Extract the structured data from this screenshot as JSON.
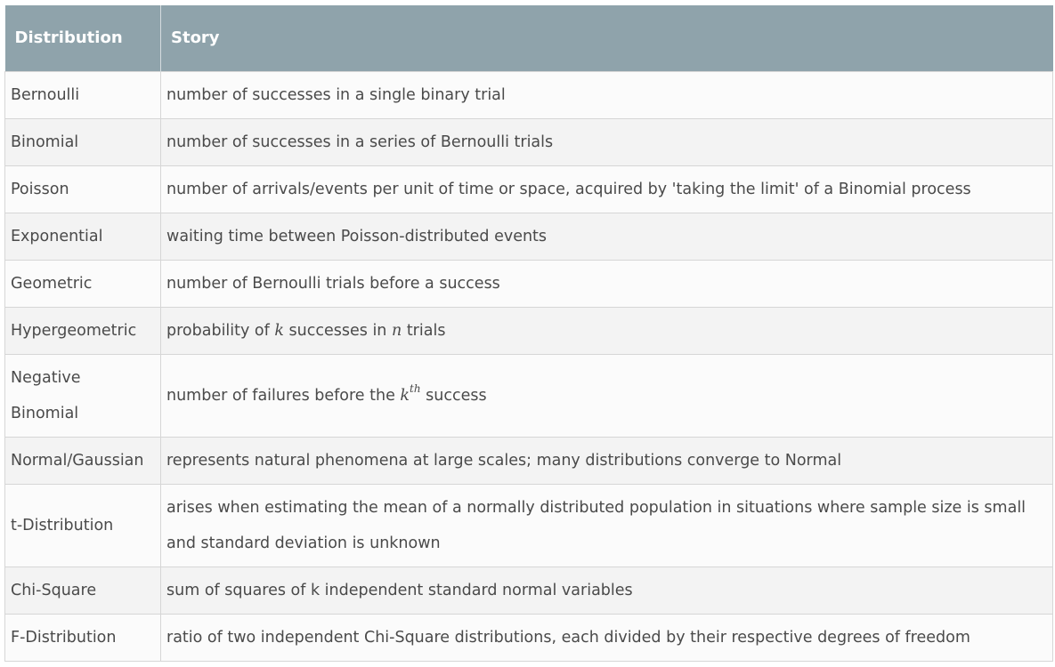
{
  "table": {
    "headers": [
      "Distribution",
      "Story"
    ],
    "rows": [
      {
        "name": "Bernoulli",
        "story": "number of successes in a single binary trial"
      },
      {
        "name": "Binomial",
        "story": "number of successes in a series of Bernoulli trials"
      },
      {
        "name": "Poisson",
        "story": "number of arrivals/events per unit of time or space, acquired by 'taking the limit' of a Binomial process"
      },
      {
        "name": "Exponential",
        "story": "waiting time between Poisson-distributed events"
      },
      {
        "name": "Geometric",
        "story": "number of Bernoulli trials before a success"
      },
      {
        "name": "Hypergeometric",
        "story_parts": [
          "probability of ",
          "k",
          " successes in ",
          "n",
          " trials"
        ]
      },
      {
        "name_lines": [
          "Negative",
          "Binomial"
        ],
        "story_parts": [
          "number of failures before the ",
          "k",
          "th",
          " success"
        ]
      },
      {
        "name": "Normal/Gaussian",
        "story": "represents natural phenomena at large scales; many distributions converge to Normal"
      },
      {
        "name": "t-Distribution",
        "story": "arises when estimating the mean of a normally distributed population in situations where sample size is small and standard deviation is unknown"
      },
      {
        "name": "Chi-Square",
        "story": "sum of squares of k independent standard normal variables"
      },
      {
        "name": "F-Distribution",
        "story": "ratio of two independent Chi-Square distributions, each divided by their respective degrees of freedom"
      }
    ]
  }
}
